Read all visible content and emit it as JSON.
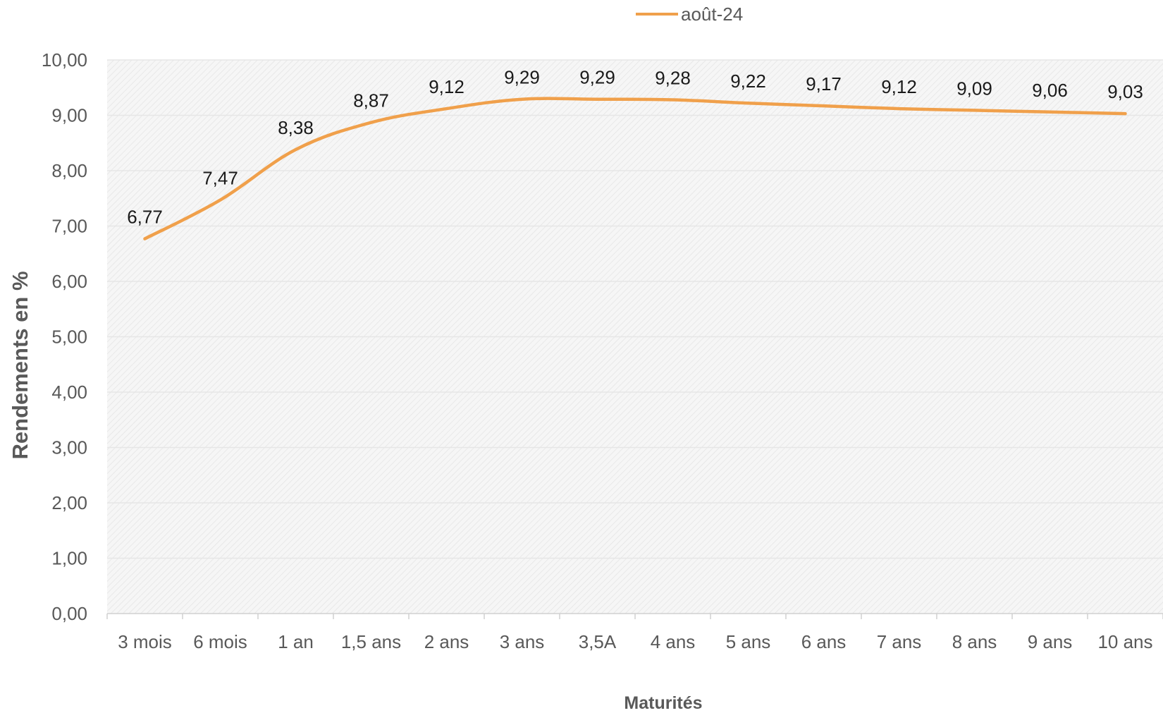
{
  "chart_data": {
    "type": "line",
    "categories": [
      "3 mois",
      "6 mois",
      "1 an",
      "1,5 ans",
      "2 ans",
      "3 ans",
      "3,5A",
      "4 ans",
      "5 ans",
      "6 ans",
      "7 ans",
      "8 ans",
      "9 ans",
      "10 ans"
    ],
    "series": [
      {
        "name": "août-24",
        "color": "#F0A04B",
        "values": [
          6.77,
          7.47,
          8.38,
          8.87,
          9.12,
          9.29,
          9.29,
          9.28,
          9.22,
          9.17,
          9.12,
          9.09,
          9.06,
          9.03
        ],
        "data_labels": [
          "6,77",
          "7,47",
          "8,38",
          "8,87",
          "9,12",
          "9,29",
          "9,29",
          "9,28",
          "9,22",
          "9,17",
          "9,12",
          "9,09",
          "9,06",
          "9,03"
        ]
      }
    ],
    "xlabel": "Maturités",
    "ylabel": "Rendements en %",
    "ylim": [
      0,
      10
    ],
    "yticks": [
      "0,00",
      "1,00",
      "2,00",
      "3,00",
      "4,00",
      "5,00",
      "6,00",
      "7,00",
      "8,00",
      "9,00",
      "10,00"
    ],
    "grid": true,
    "smooth": true,
    "legend_position": "top-center",
    "colors": {
      "line": "#F0A04B",
      "plot_background": "#F4F4F4",
      "gridline": "#E6E6E6",
      "axis": "#D0D0D0"
    }
  }
}
